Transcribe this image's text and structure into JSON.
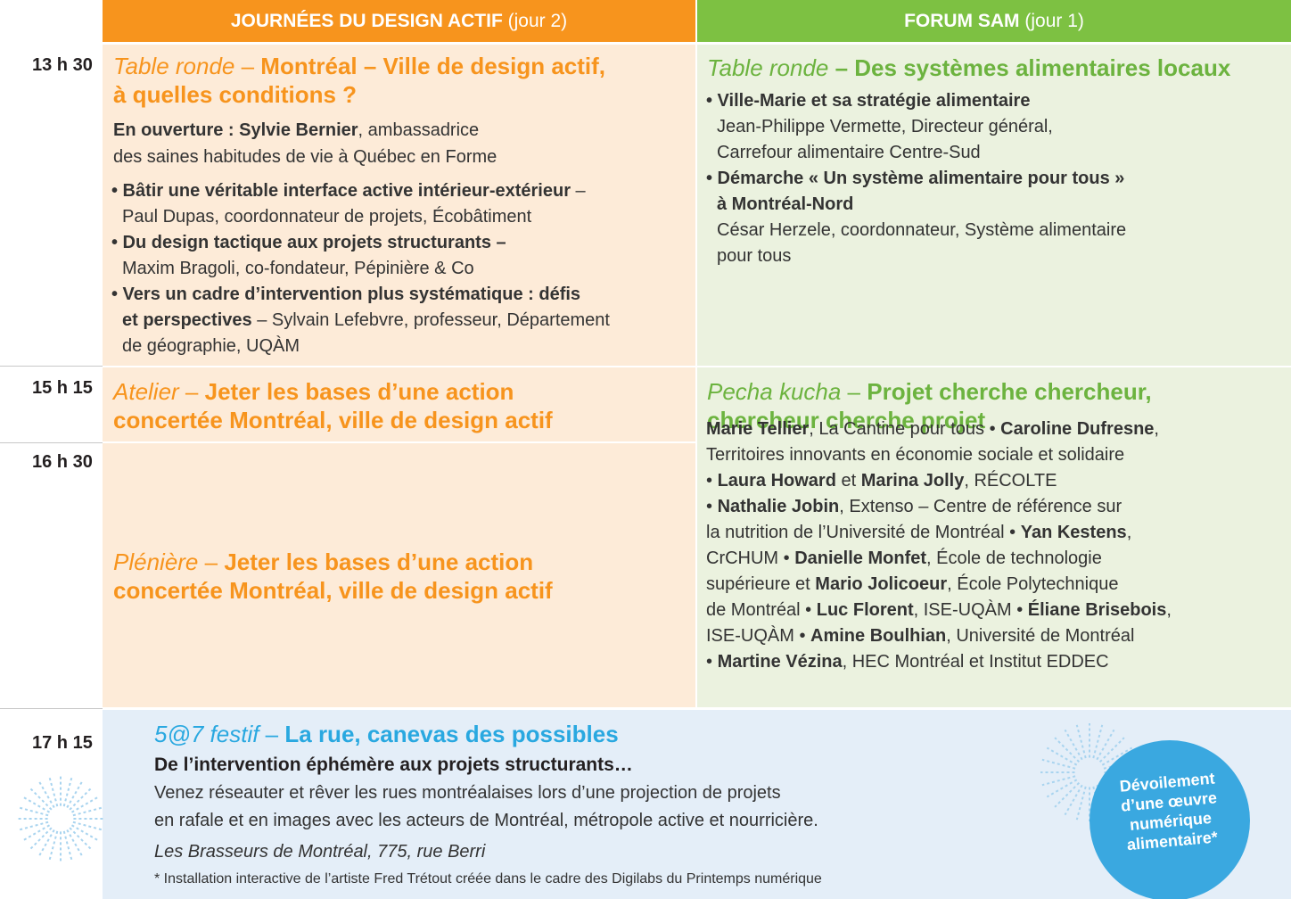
{
  "header": {
    "left": [
      {
        "b": "JOURNÉES DU DESIGN ACTIF"
      },
      {
        "r": " (jour 2)"
      }
    ],
    "right": [
      {
        "b": "FORUM SAM"
      },
      {
        "r": " (jour 1)"
      }
    ]
  },
  "times": [
    "13 h 30",
    "15 h 15",
    "16 h 30",
    "17 h 15"
  ],
  "left": [
    {
      "title": [
        {
          "i": "Table ronde"
        },
        {
          "r": " – "
        },
        {
          "b": "Montréal – Ville de design actif,\nà quelles conditions ?"
        }
      ],
      "intro": [
        {
          "b": "En ouverture : Sylvie Bernier"
        },
        {
          "r": ", ambassadrice\ndes saines habitudes de vie à Québec en Forme"
        }
      ],
      "items": [
        [
          {
            "b": "• Bâtir une véritable interface active intérieur-extérieur"
          },
          {
            "r": " –\nPaul Dupas, coordonnateur de projets, Écobâtiment"
          }
        ],
        [
          {
            "b": "• Du design tactique aux projets structurants –"
          },
          {
            "r": "\nMaxim Bragoli, co-fondateur, Pépinière & Co"
          }
        ],
        [
          {
            "b": "• Vers un cadre d’intervention plus systématique : défis\net perspectives"
          },
          {
            "r": " – Sylvain Lefebvre, professeur, Département\nde géographie, UQÀM"
          }
        ]
      ]
    },
    {
      "title": [
        {
          "i": "Atelier"
        },
        {
          "r": " – "
        },
        {
          "b": "Jeter les bases d’une action\nconcertée Montréal, ville de design actif"
        }
      ]
    },
    {
      "title": [
        {
          "i": "Plénière"
        },
        {
          "r": " – "
        },
        {
          "b": "Jeter les bases d’une action\nconcertée Montréal, ville de design actif"
        }
      ]
    }
  ],
  "right": [
    {
      "title": [
        {
          "i": "Table ronde"
        },
        {
          "b": " – Des systèmes alimentaires locaux"
        }
      ],
      "items": [
        [
          {
            "b": "• Ville-Marie et sa stratégie alimentaire"
          },
          {
            "r": "\nJean-Philippe Vermette, Directeur général,\nCarrefour alimentaire Centre-Sud"
          }
        ],
        [
          {
            "b": "• Démarche « Un système alimentaire pour tous »\nà Montréal-Nord"
          },
          {
            "r": "\nCésar Herzele, coordonnateur, Système alimentaire\npour tous"
          }
        ]
      ]
    },
    {
      "title": [
        {
          "i": "Pecha kucha"
        },
        {
          "r": " – "
        },
        {
          "b": "Projet cherche chercheur,\nchercheur cherche projet"
        }
      ],
      "people": [
        {
          "b": "Marie Tellier"
        },
        {
          "r": ", La Cantine pour tous • "
        },
        {
          "b": "Caroline Dufresne"
        },
        {
          "r": ",\nTerritoires innovants en économie sociale et solidaire\n• "
        },
        {
          "b": "Laura Howard"
        },
        {
          "r": " et "
        },
        {
          "b": "Marina Jolly"
        },
        {
          "r": ", RÉCOLTE\n• "
        },
        {
          "b": "Nathalie Jobin"
        },
        {
          "r": ", Extenso – Centre de référence sur\nla nutrition de l’Université de Montréal • "
        },
        {
          "b": "Yan Kestens"
        },
        {
          "r": ",\nCrCHUM • "
        },
        {
          "b": "Danielle Monfet"
        },
        {
          "r": ", École de technologie\nsupérieure et "
        },
        {
          "b": "Mario Jolicoeur"
        },
        {
          "r": ", École Polytechnique\nde Montréal • "
        },
        {
          "b": "Luc Florent"
        },
        {
          "r": ", ISE-UQÀM • "
        },
        {
          "b": "Éliane Brisebois"
        },
        {
          "r": ",\nISE-UQÀM • "
        },
        {
          "b": "Amine Boulhian"
        },
        {
          "r": ", Université de Montréal\n• "
        },
        {
          "b": "Martine Vézina"
        },
        {
          "r": ", HEC Montréal et Institut EDDEC"
        }
      ]
    }
  ],
  "evening": {
    "title": [
      {
        "i": "5@7 festif"
      },
      {
        "r": " – "
      },
      {
        "b": "La rue, canevas des possibles"
      }
    ],
    "subtitle": "De l’intervention éphémère aux projets structurants…",
    "text": "Venez réseauter et rêver les rues montréalaises lors d’une projection de projets\nen rafale et en images avec les acteurs de Montréal, métropole active et nourricière.",
    "place": "Les Brasseurs de Montréal, 775, rue Berri",
    "note": "* Installation interactive de l’artiste Fred Trétout créée dans le cadre des Digilabs du Printemps numérique",
    "badge": "Dévoilement\nd’une œuvre\nnumérique\nalimentaire*"
  }
}
